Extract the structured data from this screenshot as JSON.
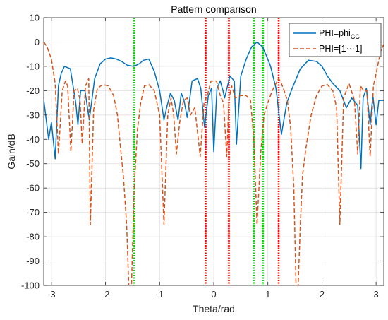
{
  "chart_data": {
    "type": "line",
    "title": "Pattern comparison",
    "xlabel": "Theta/rad",
    "ylabel": "Gain/dB",
    "xlim": [
      -3.14159,
      3.14159
    ],
    "ylim": [
      -100,
      10
    ],
    "xticks": [
      "-3",
      "-2",
      "-1",
      "0",
      "1",
      "2",
      "3"
    ],
    "xtick_values": [
      -3,
      -2,
      -1,
      0,
      1,
      2,
      3
    ],
    "yticks": [
      "10",
      "0",
      "-10",
      "-20",
      "-30",
      "-40",
      "-50",
      "-60",
      "-70",
      "-80",
      "-90",
      "-100"
    ],
    "ytick_values": [
      10,
      0,
      -10,
      -20,
      -30,
      -40,
      -50,
      -60,
      -70,
      -80,
      -90,
      -100
    ],
    "grid": true,
    "legend_position": "top-right",
    "series": [
      {
        "name": "PHI=phi",
        "name_sub": "CC",
        "color": "#0072BD",
        "style": "solid",
        "x": [
          -3.14,
          -3.05,
          -3.0,
          -2.93,
          -2.87,
          -2.82,
          -2.76,
          -2.65,
          -2.55,
          -2.51,
          -2.46,
          -2.38,
          -2.3,
          -2.2,
          -2.1,
          -2.0,
          -1.9,
          -1.8,
          -1.7,
          -1.6,
          -1.48,
          -1.38,
          -1.3,
          -1.2,
          -1.1,
          -1.0,
          -0.92,
          -0.86,
          -0.8,
          -0.73,
          -0.66,
          -0.6,
          -0.55,
          -0.49,
          -0.4,
          -0.3,
          -0.24,
          -0.17,
          -0.1,
          -0.04,
          0.0,
          0.06,
          0.12,
          0.17,
          0.2,
          0.3,
          0.38,
          0.42,
          0.5,
          0.6,
          0.7,
          0.8,
          0.9,
          0.98,
          1.05,
          1.15,
          1.25,
          1.35,
          1.45,
          1.6,
          1.75,
          1.9,
          2.0,
          2.1,
          2.2,
          2.33,
          2.45,
          2.55,
          2.66,
          2.72,
          2.76,
          2.82,
          2.89,
          2.94,
          3.0,
          3.05,
          3.14
        ],
        "y": [
          -24,
          -40,
          -33,
          -48,
          -18,
          -13,
          -10,
          -11,
          -25,
          -34,
          -20,
          -20,
          -32,
          -15,
          -9,
          -7,
          -6.5,
          -7,
          -8,
          -9.5,
          -10,
          -9,
          -7.5,
          -7,
          -12,
          -20,
          -32,
          -26,
          -21,
          -24,
          -32,
          -21,
          -24,
          -31,
          -16,
          -15,
          -19,
          -35,
          -22,
          -19,
          -45,
          -19,
          -16,
          -20,
          -23,
          -14,
          -16,
          -42,
          -14,
          -7,
          -2,
          0,
          -2,
          -6,
          -10,
          -19,
          -38,
          -25,
          -19,
          -11,
          -7.5,
          -8,
          -10,
          -14,
          -17,
          -20,
          -27,
          -23,
          -26,
          -52,
          -23,
          -19,
          -34,
          -22,
          -34,
          -24,
          -24
        ]
      },
      {
        "name": "PHI=[1⋯1]",
        "color": "#D95319",
        "style": "dashed",
        "x": [
          -3.14,
          -3.08,
          -3.0,
          -2.93,
          -2.87,
          -2.8,
          -2.74,
          -2.7,
          -2.64,
          -2.58,
          -2.52,
          -2.47,
          -2.43,
          -2.37,
          -2.31,
          -2.28,
          -2.22,
          -2.15,
          -2.05,
          -1.95,
          -1.85,
          -1.78,
          -1.72,
          -1.67,
          -1.61,
          -1.57,
          -1.52,
          -1.47,
          -1.41,
          -1.35,
          -1.28,
          -1.2,
          -1.1,
          -1.0,
          -0.92,
          -0.85,
          -0.79,
          -0.74,
          -0.69,
          -0.63,
          -0.56,
          -0.49,
          -0.43,
          -0.35,
          -0.25,
          -0.18,
          -0.12,
          -0.05,
          0.05,
          0.12,
          0.18,
          0.24,
          0.28,
          0.33,
          0.4,
          0.5,
          0.6,
          0.68,
          0.74,
          0.8,
          0.87,
          0.93,
          1.0,
          1.08,
          1.15,
          1.2,
          1.25,
          1.3,
          1.36,
          1.42,
          1.48,
          1.52,
          1.56,
          1.6,
          1.64,
          1.7,
          1.8,
          1.9,
          2.0,
          2.1,
          2.2,
          2.27,
          2.33,
          2.4,
          2.5,
          2.6,
          2.66,
          2.71,
          2.77,
          2.83,
          2.89,
          2.95,
          3.0,
          3.08,
          3.14
        ],
        "y": [
          0,
          -2,
          -7,
          -17,
          -46,
          -20,
          -16,
          -18,
          -45,
          -20,
          -19,
          -24,
          -42,
          -18,
          -15,
          -75,
          -28,
          -19,
          -17.5,
          -18,
          -22,
          -30,
          -44,
          -55,
          -75,
          -100,
          -100,
          -60,
          -36,
          -25,
          -18,
          -17.5,
          -20,
          -30,
          -75,
          -30,
          -23,
          -30,
          -46,
          -33,
          -24,
          -23,
          -30,
          -27,
          -47,
          -25,
          -22,
          -16,
          -16,
          -22,
          -25,
          -47,
          -24,
          -18,
          -23,
          -22,
          -22,
          -24,
          -40,
          -75,
          -45,
          -30,
          -25,
          -20,
          -17,
          -15,
          -17,
          -20,
          -24,
          -35,
          -60,
          -100,
          -100,
          -75,
          -55,
          -44,
          -30,
          -22,
          -18,
          -17.5,
          -20,
          -27,
          -75,
          -23,
          -17,
          -24,
          -46,
          -18,
          -20,
          -20,
          -47,
          -18,
          -13,
          -4,
          -1
        ]
      }
    ],
    "vertical_lines": [
      {
        "color": "#00E000",
        "x": -1.47
      },
      {
        "color": "#00E000",
        "x": 0.74
      },
      {
        "color": "#00E000",
        "x": 0.91
      },
      {
        "color": "#FF0000",
        "x": -0.15
      },
      {
        "color": "#FF0000",
        "x": 0.28
      },
      {
        "color": "#FF0000",
        "x": 1.2
      }
    ]
  }
}
